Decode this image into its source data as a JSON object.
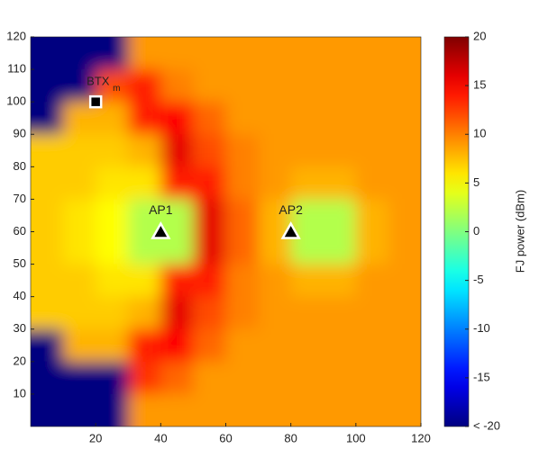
{
  "chart_data": {
    "type": "heatmap",
    "x": [
      5,
      15,
      25,
      35,
      45,
      55,
      65,
      75,
      85,
      95,
      105,
      115
    ],
    "y": [
      115,
      105,
      95,
      85,
      75,
      65,
      55,
      45,
      35,
      25,
      15,
      5
    ],
    "z": [
      [
        -20,
        -20,
        -20,
        9,
        9,
        9,
        9,
        9,
        9,
        9,
        9,
        9
      ],
      [
        -20,
        -20,
        12,
        14,
        10,
        9,
        9,
        9,
        9,
        9,
        9,
        9
      ],
      [
        -20,
        8,
        8,
        14,
        15,
        11,
        9,
        9,
        9,
        9,
        9,
        9
      ],
      [
        7,
        7,
        7,
        8,
        16,
        12,
        10,
        9,
        9,
        9,
        9,
        9
      ],
      [
        7,
        7,
        6,
        6,
        14,
        14,
        10,
        9,
        8,
        8,
        9,
        9
      ],
      [
        7,
        6,
        5,
        2,
        2,
        16,
        11,
        8,
        2,
        2,
        8,
        9
      ],
      [
        7,
        6,
        5,
        2,
        2,
        16,
        11,
        8,
        2,
        2,
        8,
        9
      ],
      [
        7,
        7,
        6,
        6,
        14,
        14,
        10,
        9,
        8,
        8,
        9,
        9
      ],
      [
        7,
        7,
        7,
        8,
        16,
        12,
        10,
        9,
        9,
        9,
        9,
        9
      ],
      [
        -20,
        8,
        8,
        14,
        15,
        11,
        9,
        9,
        9,
        9,
        9,
        9
      ],
      [
        -20,
        -20,
        -20,
        13,
        11,
        9,
        9,
        9,
        9,
        9,
        9,
        9
      ],
      [
        -20,
        -20,
        -20,
        9,
        9,
        9,
        9,
        9,
        9,
        9,
        9,
        9
      ]
    ],
    "colormap": "jet",
    "xlim": [
      0,
      120
    ],
    "ylim": [
      0,
      120
    ],
    "xticks": [
      20,
      40,
      60,
      80,
      100,
      120
    ],
    "yticks": [
      10,
      20,
      30,
      40,
      50,
      60,
      70,
      80,
      90,
      100,
      110,
      120
    ],
    "clim": [
      -20,
      20
    ],
    "cticks": [
      {
        "value": -20,
        "label": "< -20"
      },
      -15,
      -10,
      -5,
      0,
      5,
      10,
      15,
      20
    ],
    "colorbar_label": "FJ power (dBm)",
    "points": [
      {
        "label": "BTX",
        "subscript": "m",
        "x": 20,
        "y": 100,
        "marker": "square"
      },
      {
        "label": "AP1",
        "x": 40,
        "y": 60,
        "marker": "triangle"
      },
      {
        "label": "AP2",
        "x": 80,
        "y": 60,
        "marker": "triangle"
      }
    ]
  }
}
